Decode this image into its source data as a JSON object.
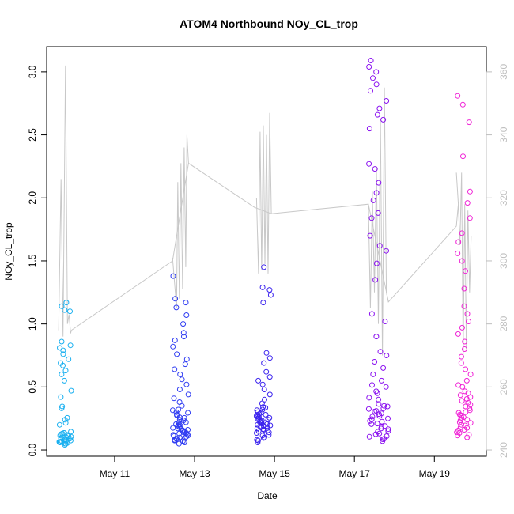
{
  "chart_data": {
    "type": "scatter",
    "title": "ATOM4 Northbound NOy_CL_trop",
    "xlabel": "Date",
    "ylabel": "NOy_CL_trop",
    "x_ticks": [
      {
        "day": 11,
        "label": "May 11"
      },
      {
        "day": 13,
        "label": "May 13"
      },
      {
        "day": 15,
        "label": "May 15"
      },
      {
        "day": 17,
        "label": "May 17"
      },
      {
        "day": 19,
        "label": "May 19"
      }
    ],
    "xlim": [
      9.3,
      20.3
    ],
    "ylim": [
      -0.05,
      3.2
    ],
    "y_ticks": [
      "0.0",
      "0.5",
      "1.0",
      "1.5",
      "2.0",
      "2.5",
      "3.0"
    ],
    "y2lim": [
      238,
      368
    ],
    "y2_ticks": [
      "240",
      "260",
      "280",
      "300",
      "320",
      "340",
      "360"
    ],
    "grid": false,
    "line_series_color": "#c8c8c8",
    "point_color_scale": [
      "#00bfff",
      "#1a1aff",
      "#7f00ff",
      "#ff00cc"
    ],
    "segments": [
      {
        "x_range": [
          9.6,
          9.92
        ],
        "color": "#1ab0f0",
        "line_spikes": [
          [
            9.6,
            278
          ],
          [
            9.66,
            326
          ],
          [
            9.71,
            276
          ],
          [
            9.77,
            362
          ],
          [
            9.82,
            280
          ],
          [
            9.86,
            283
          ],
          [
            9.9,
            277
          ],
          [
            9.92,
            278
          ]
        ],
        "dense_y": [
          0.04,
          0.05,
          0.06,
          0.07,
          0.08,
          0.05,
          0.06,
          0.09,
          0.1,
          0.12,
          0.13,
          0.11,
          0.12,
          0.2,
          0.24,
          0.33
        ],
        "sparse_y": [
          0.42,
          0.47,
          0.55,
          0.6,
          0.63,
          0.67,
          0.69,
          0.72,
          0.76,
          0.79,
          0.81,
          0.83,
          0.86,
          1.1,
          1.11,
          1.14,
          1.17
        ]
      },
      {
        "x_range": [
          12.45,
          12.85
        ],
        "color": "#2f3cf2",
        "line_spikes": [
          [
            12.45,
            301
          ],
          [
            12.55,
            285
          ],
          [
            12.58,
            325
          ],
          [
            12.62,
            288
          ],
          [
            12.66,
            331
          ],
          [
            12.7,
            291
          ],
          [
            12.74,
            336
          ],
          [
            12.78,
            298
          ],
          [
            12.81,
            340
          ],
          [
            12.85,
            331
          ]
        ],
        "dense_y": [
          0.05,
          0.06,
          0.07,
          0.08,
          0.09,
          0.1,
          0.11,
          0.12,
          0.13,
          0.14,
          0.15,
          0.16,
          0.17,
          0.18,
          0.19,
          0.2,
          0.22,
          0.24,
          0.26,
          0.28,
          0.3
        ],
        "sparse_y": [
          0.32,
          0.35,
          0.38,
          0.41,
          0.44,
          0.48,
          0.52,
          0.56,
          0.6,
          0.64,
          0.68,
          0.72,
          0.76,
          0.82,
          0.87,
          0.9,
          0.93,
          1.0,
          1.07,
          1.13,
          1.17,
          1.2,
          1.38
        ]
      },
      {
        "x_range": [
          14.55,
          14.92
        ],
        "color": "#3a22ee",
        "line_spikes": [
          [
            14.55,
            320
          ],
          [
            14.6,
            296
          ],
          [
            14.64,
            341
          ],
          [
            14.68,
            297
          ],
          [
            14.72,
            343
          ],
          [
            14.76,
            299
          ],
          [
            14.8,
            340
          ],
          [
            14.84,
            296
          ],
          [
            14.88,
            347
          ],
          [
            14.92,
            315
          ]
        ],
        "dense_y": [
          0.06,
          0.08,
          0.1,
          0.12,
          0.14,
          0.15,
          0.16,
          0.17,
          0.18,
          0.19,
          0.2,
          0.21,
          0.22,
          0.23,
          0.24,
          0.25,
          0.26,
          0.27,
          0.28,
          0.3,
          0.32
        ],
        "sparse_y": [
          0.34,
          0.37,
          0.4,
          0.44,
          0.48,
          0.52,
          0.55,
          0.58,
          0.62,
          0.69,
          0.73,
          0.77,
          1.17,
          1.23,
          1.27,
          1.29,
          1.45
        ]
      },
      {
        "x_range": [
          17.35,
          17.85
        ],
        "color": "#8a10f0",
        "line_spikes": [
          [
            17.35,
            318
          ],
          [
            17.4,
            285
          ],
          [
            17.45,
            322
          ],
          [
            17.5,
            290
          ],
          [
            17.55,
            330
          ],
          [
            17.6,
            280
          ],
          [
            17.65,
            345
          ],
          [
            17.7,
            270
          ],
          [
            17.75,
            355
          ],
          [
            17.8,
            290
          ],
          [
            17.85,
            287
          ]
        ],
        "dense_y": [
          0.07,
          0.09,
          0.11,
          0.13,
          0.15,
          0.17,
          0.19,
          0.21,
          0.23,
          0.25,
          0.27,
          0.29,
          0.31,
          0.33,
          0.35,
          0.4,
          0.45,
          0.5
        ],
        "sparse_y": [
          0.55,
          0.6,
          0.65,
          0.7,
          0.75,
          0.78,
          0.9,
          1.02,
          1.08,
          1.35,
          1.48,
          1.58,
          1.62,
          1.7,
          1.84,
          1.88,
          1.98,
          2.04,
          2.12,
          2.23,
          2.27,
          2.55,
          2.62,
          2.66,
          2.71,
          2.77,
          2.85,
          2.9,
          2.95,
          3.0,
          3.04,
          3.09
        ]
      },
      {
        "x_range": [
          19.55,
          19.92
        ],
        "color": "#f022d6",
        "line_spikes": [
          [
            19.55,
            328
          ],
          [
            19.6,
            318
          ],
          [
            19.64,
            305
          ],
          [
            19.68,
            328
          ],
          [
            19.72,
            270
          ],
          [
            19.76,
            318
          ],
          [
            19.8,
            272
          ],
          [
            19.84,
            316
          ],
          [
            19.88,
            290
          ],
          [
            19.92,
            308
          ]
        ],
        "dense_y": [
          0.1,
          0.12,
          0.14,
          0.16,
          0.18,
          0.2,
          0.22,
          0.24,
          0.26,
          0.28,
          0.3,
          0.33,
          0.36,
          0.39,
          0.42,
          0.45,
          0.5
        ],
        "sparse_y": [
          0.55,
          0.6,
          0.64,
          0.69,
          0.74,
          0.8,
          0.86,
          0.92,
          0.97,
          1.02,
          1.08,
          1.14,
          1.28,
          1.42,
          1.5,
          1.56,
          1.65,
          1.72,
          1.84,
          1.96,
          2.05,
          2.33,
          2.6,
          2.74,
          2.81
        ]
      }
    ],
    "connector_line": [
      [
        9.92,
        278
      ],
      [
        12.45,
        300
      ],
      [
        12.85,
        331
      ],
      [
        14.5,
        317
      ],
      [
        14.92,
        315
      ],
      [
        17.35,
        318
      ],
      [
        17.85,
        287
      ],
      [
        19.55,
        311
      ],
      [
        19.6,
        318
      ]
    ]
  }
}
